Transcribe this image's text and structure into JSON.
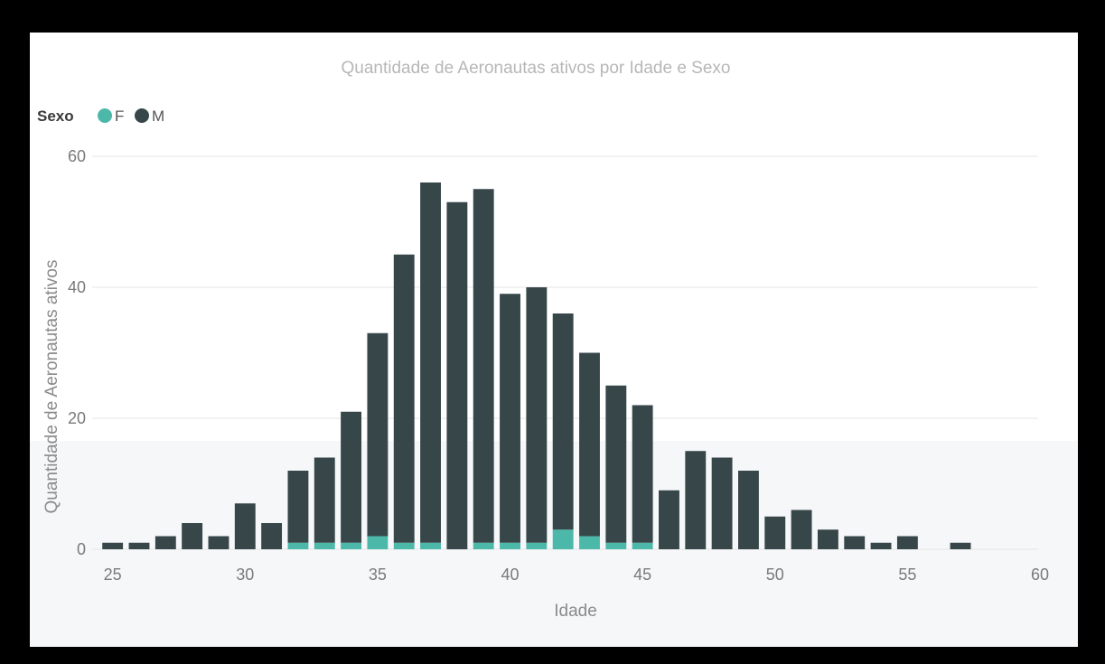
{
  "chart_data": {
    "type": "bar",
    "stacked": true,
    "title": "Quantidade de Aeronautas ativos por Idade e Sexo",
    "xlabel": "Idade",
    "ylabel": "Quantidade de Aeronautas ativos",
    "legend_title": "Sexo",
    "legend_position": "top-left",
    "grid": true,
    "xlim": [
      24.5,
      60
    ],
    "ylim": [
      0,
      60
    ],
    "x_ticks": [
      25,
      30,
      35,
      40,
      45,
      50,
      55,
      60
    ],
    "y_ticks": [
      0,
      20,
      40,
      60
    ],
    "x": [
      25,
      26,
      27,
      28,
      29,
      30,
      31,
      32,
      33,
      34,
      35,
      36,
      37,
      38,
      39,
      40,
      41,
      42,
      43,
      44,
      45,
      46,
      47,
      48,
      49,
      50,
      51,
      52,
      53,
      54,
      55,
      57
    ],
    "series": [
      {
        "name": "F",
        "color": "#4cb8aa",
        "values": [
          0,
          0,
          0,
          0,
          0,
          0,
          0,
          1,
          1,
          1,
          2,
          1,
          1,
          0,
          1,
          1,
          1,
          3,
          2,
          1,
          1,
          0,
          0,
          0,
          0,
          0,
          0,
          0,
          0,
          0,
          0,
          0
        ]
      },
      {
        "name": "M",
        "color": "#374649",
        "values": [
          1,
          1,
          2,
          4,
          2,
          7,
          4,
          11,
          13,
          20,
          31,
          44,
          55,
          53,
          54,
          38,
          39,
          33,
          28,
          24,
          21,
          9,
          15,
          14,
          12,
          5,
          6,
          3,
          2,
          1,
          2,
          1
        ]
      }
    ]
  }
}
